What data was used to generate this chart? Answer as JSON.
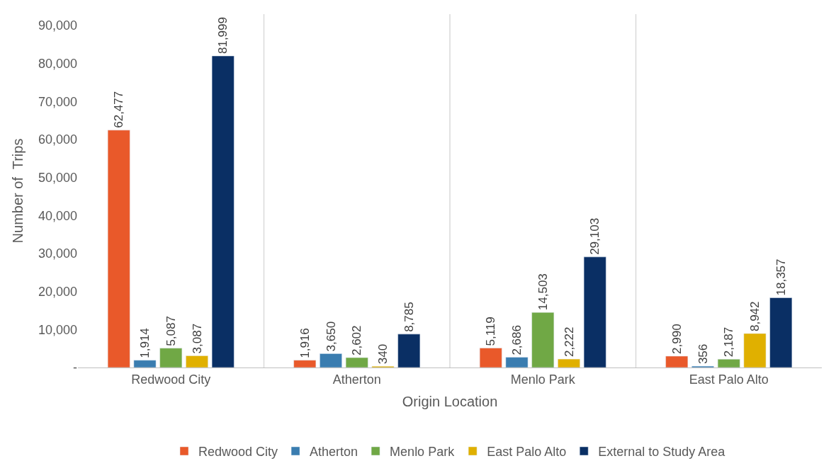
{
  "chart_data": {
    "type": "bar",
    "xlabel": "Origin Location",
    "ylabel": "Number of  Trips",
    "categories": [
      "Redwood City",
      "Atherton",
      "Menlo Park",
      "East Palo Alto"
    ],
    "series": [
      {
        "name": "Redwood City",
        "color": "#e9592a",
        "values": [
          62477,
          1916,
          5119,
          2990
        ],
        "value_labels": [
          "62,477",
          "1,916",
          "5,119",
          "2,990"
        ]
      },
      {
        "name": "Atherton",
        "color": "#3a7db0",
        "values": [
          1914,
          3650,
          2686,
          356
        ],
        "value_labels": [
          "1,914",
          "3,650",
          "2,686",
          "356"
        ]
      },
      {
        "name": "Menlo Park",
        "color": "#70a845",
        "values": [
          5087,
          2602,
          14503,
          2187
        ],
        "value_labels": [
          "5,087",
          "2,602",
          "14,503",
          "2,187"
        ]
      },
      {
        "name": "East Palo Alto",
        "color": "#e0b000",
        "values": [
          3087,
          340,
          2222,
          8942
        ],
        "value_labels": [
          "3,087",
          "340",
          "2,222",
          "8,942"
        ]
      },
      {
        "name": "External to Study Area",
        "color": "#0a2f64",
        "values": [
          81999,
          8785,
          29103,
          18357
        ],
        "value_labels": [
          "81,999",
          "8,785",
          "29,103",
          "18,357"
        ]
      }
    ],
    "ylim": [
      0,
      93000
    ],
    "yticks": [
      {
        "value": 0,
        "label": "-"
      },
      {
        "value": 10000,
        "label": "10,000"
      },
      {
        "value": 20000,
        "label": "20,000"
      },
      {
        "value": 30000,
        "label": "30,000"
      },
      {
        "value": 40000,
        "label": "40,000"
      },
      {
        "value": 50000,
        "label": "50,000"
      },
      {
        "value": 60000,
        "label": "60,000"
      },
      {
        "value": 70000,
        "label": "70,000"
      },
      {
        "value": 80000,
        "label": "80,000"
      },
      {
        "value": 90000,
        "label": "90,000"
      }
    ],
    "grid": "x",
    "legend": "bottom"
  }
}
